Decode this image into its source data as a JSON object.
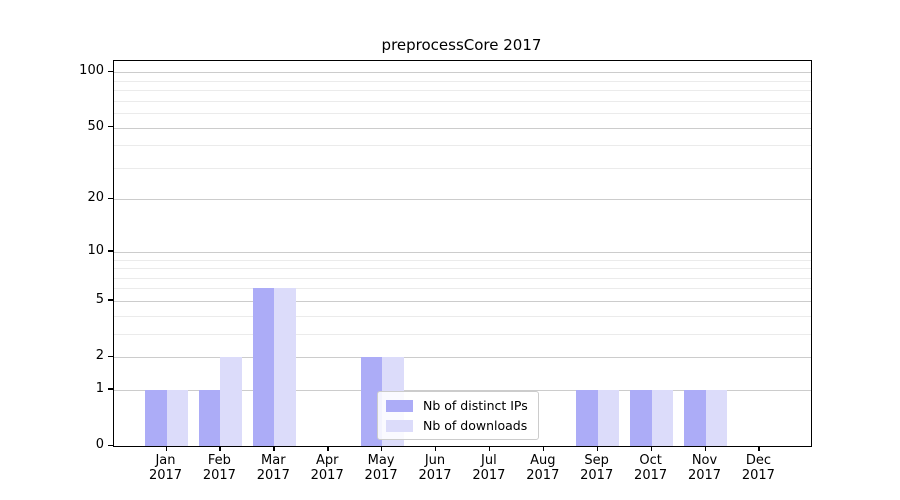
{
  "chart_data": {
    "type": "bar",
    "title": "preprocessCore 2017",
    "categories": [
      "Jan",
      "Feb",
      "Mar",
      "Apr",
      "May",
      "Jun",
      "Jul",
      "Aug",
      "Sep",
      "Oct",
      "Nov",
      "Dec"
    ],
    "year": "2017",
    "series": [
      {
        "name": "Nb of distinct IPs",
        "color": "#acacf7",
        "values": [
          1,
          1,
          6,
          0,
          2,
          0,
          0,
          0,
          1,
          1,
          1,
          0
        ]
      },
      {
        "name": "Nb of downloads",
        "color": "#dcdcfa",
        "values": [
          1,
          2,
          6,
          0,
          2,
          0,
          0,
          0,
          1,
          1,
          1,
          0
        ]
      }
    ],
    "xlabel": "",
    "ylabel": "",
    "yscale": "log1p",
    "ylim": [
      0,
      115
    ],
    "yticks": [
      0,
      1,
      2,
      5,
      10,
      20,
      50,
      100
    ],
    "yticks_minor": [
      3,
      4,
      6,
      7,
      8,
      9,
      30,
      40,
      60,
      70,
      80,
      90
    ],
    "grid": true,
    "legend_position": "lower-center",
    "colors": {
      "grid_major": "#cccccc",
      "grid_minor": "#ebebeb",
      "spine": "#000000",
      "text": "#000000",
      "legend_border": "#cccccc"
    }
  }
}
